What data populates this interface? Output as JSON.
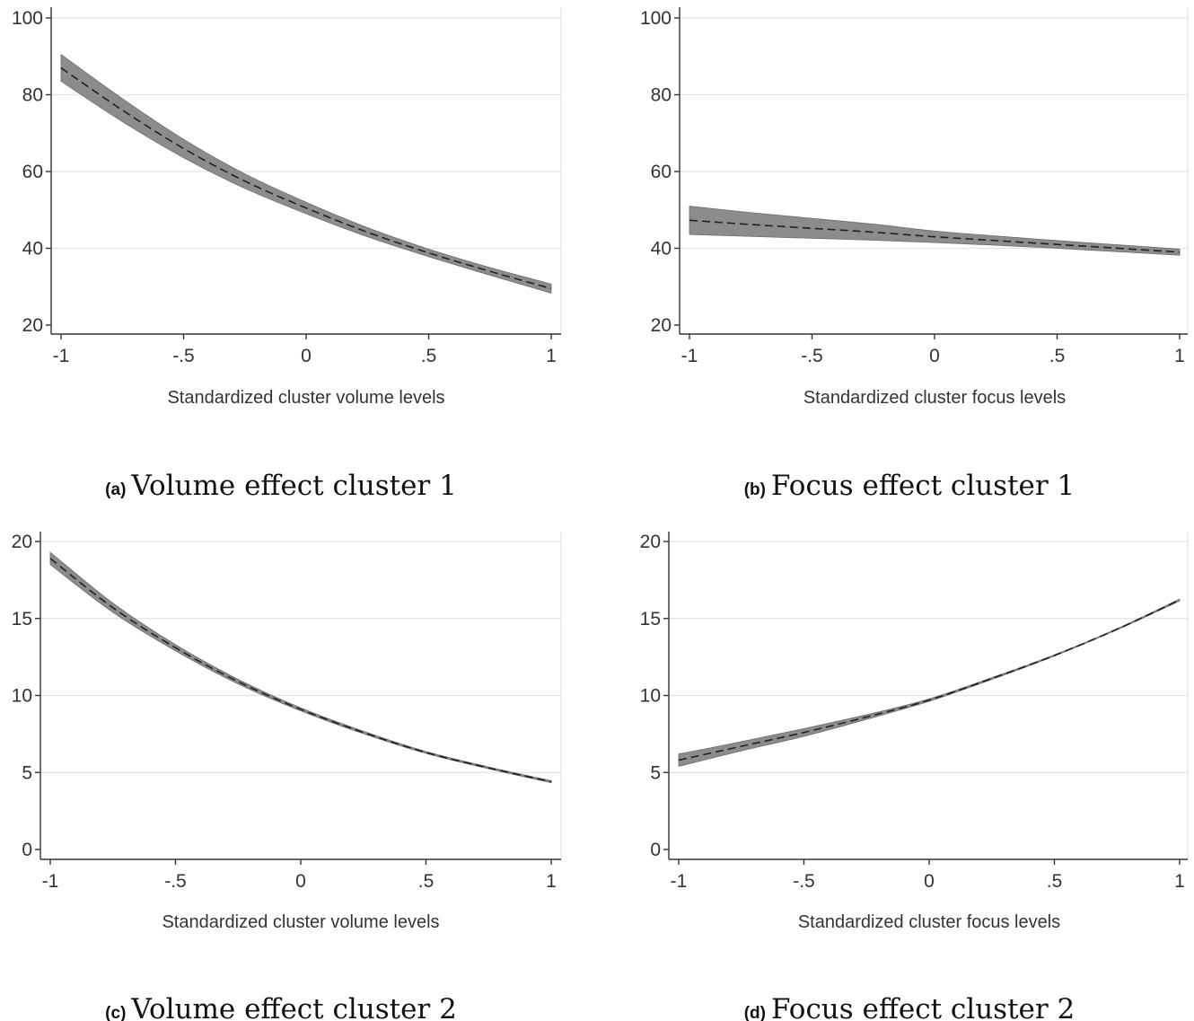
{
  "figure": {
    "panels": [
      {
        "caption_letter": "(a)",
        "caption_text": "Volume effect cluster 1",
        "xlabel": "Standardized cluster volume levels"
      },
      {
        "caption_letter": "(b)",
        "caption_text": "Focus effect cluster 1",
        "xlabel": "Standardized cluster focus levels"
      },
      {
        "caption_letter": "(c)",
        "caption_text": "Volume effect cluster 2",
        "xlabel": "Standardized cluster volume levels"
      },
      {
        "caption_letter": "(d)",
        "caption_text": "Focus effect cluster 2",
        "xlabel": "Standardized cluster focus levels"
      }
    ]
  },
  "chart_data": [
    {
      "type": "line",
      "title": "",
      "xlabel": "Standardized cluster volume levels",
      "ylabel": "",
      "xlim": [
        -1,
        1
      ],
      "ylim": [
        20,
        100
      ],
      "xticks": [
        -1,
        -0.5,
        0,
        0.5,
        1
      ],
      "xtick_labels": [
        "-1",
        "-.5",
        "0",
        ".5",
        "1"
      ],
      "yticks": [
        20,
        40,
        60,
        80,
        100
      ],
      "ytick_labels": [
        "20",
        "40",
        "60",
        "80",
        "100"
      ],
      "grid": true,
      "x": [
        -1,
        -0.75,
        -0.5,
        -0.25,
        0,
        0.25,
        0.5,
        0.75,
        1
      ],
      "series": [
        {
          "style": "dashed line with shaded confidence band",
          "values": [
            87,
            76,
            66,
            57.5,
            50.5,
            44.2,
            38.8,
            34.0,
            29.5
          ],
          "lower": [
            83.5,
            73.0,
            63.6,
            55.6,
            49.0,
            43.0,
            37.8,
            33.0,
            28.3
          ],
          "upper": [
            90.5,
            79.0,
            68.4,
            59.4,
            52.0,
            45.4,
            39.8,
            35.0,
            30.7
          ]
        }
      ],
      "colors": {
        "band": "#8c8c8e",
        "line": "#222222",
        "grid": "#e3e3e3",
        "axis": "#333333"
      }
    },
    {
      "type": "line",
      "title": "",
      "xlabel": "Standardized cluster focus levels",
      "ylabel": "",
      "xlim": [
        -1,
        1
      ],
      "ylim": [
        20,
        100
      ],
      "xticks": [
        -1,
        -0.5,
        0,
        0.5,
        1
      ],
      "xtick_labels": [
        "-1",
        "-.5",
        "0",
        ".5",
        "1"
      ],
      "yticks": [
        20,
        40,
        60,
        80,
        100
      ],
      "ytick_labels": [
        "20",
        "40",
        "60",
        "80",
        "100"
      ],
      "grid": true,
      "x": [
        -1,
        -0.75,
        -0.5,
        -0.25,
        0,
        0.25,
        0.5,
        0.75,
        1
      ],
      "series": [
        {
          "style": "dashed line with shaded confidence band",
          "values": [
            47.3,
            46.2,
            45.2,
            44.2,
            43.0,
            42.0,
            41.0,
            40.0,
            39.0
          ],
          "lower": [
            43.6,
            43.1,
            42.6,
            42.1,
            41.5,
            40.8,
            40.0,
            39.1,
            38.2
          ],
          "upper": [
            51.0,
            49.3,
            47.8,
            46.3,
            44.5,
            43.2,
            42.0,
            40.9,
            39.8
          ]
        }
      ],
      "colors": {
        "band": "#8c8c8e",
        "line": "#222222",
        "grid": "#e3e3e3",
        "axis": "#333333"
      }
    },
    {
      "type": "line",
      "title": "",
      "xlabel": "Standardized cluster volume levels",
      "ylabel": "",
      "xlim": [
        -1,
        1
      ],
      "ylim": [
        0,
        20
      ],
      "xticks": [
        -1,
        -0.5,
        0,
        0.5,
        1
      ],
      "xtick_labels": [
        "-1",
        "-.5",
        "0",
        ".5",
        "1"
      ],
      "yticks": [
        0,
        5,
        10,
        15,
        20
      ],
      "ytick_labels": [
        "0",
        "5",
        "10",
        "15",
        "20"
      ],
      "grid": true,
      "x": [
        -1,
        -0.75,
        -0.5,
        -0.25,
        0,
        0.25,
        0.5,
        0.75,
        1
      ],
      "series": [
        {
          "style": "dashed line with shaded confidence band",
          "values": [
            18.9,
            15.7,
            13.1,
            10.9,
            9.1,
            7.6,
            6.3,
            5.3,
            4.4
          ],
          "lower": [
            18.5,
            15.4,
            12.9,
            10.75,
            9.0,
            7.52,
            6.24,
            5.24,
            4.33
          ],
          "upper": [
            19.3,
            16.0,
            13.3,
            11.05,
            9.2,
            7.68,
            6.36,
            5.36,
            4.47
          ]
        }
      ],
      "colors": {
        "band": "#8c8c8e",
        "line": "#222222",
        "grid": "#e3e3e3",
        "axis": "#333333"
      }
    },
    {
      "type": "line",
      "title": "",
      "xlabel": "Standardized cluster focus levels",
      "ylabel": "",
      "xlim": [
        -1,
        1
      ],
      "ylim": [
        0,
        20
      ],
      "xticks": [
        -1,
        -0.5,
        0,
        0.5,
        1
      ],
      "xtick_labels": [
        "-1",
        "-.5",
        "0",
        ".5",
        "1"
      ],
      "yticks": [
        0,
        5,
        10,
        15,
        20
      ],
      "ytick_labels": [
        "0",
        "5",
        "10",
        "15",
        "20"
      ],
      "grid": true,
      "x": [
        -1,
        -0.75,
        -0.5,
        -0.25,
        0,
        0.25,
        0.5,
        0.75,
        1
      ],
      "series": [
        {
          "style": "dashed line with shaded confidence band",
          "values": [
            5.8,
            6.7,
            7.6,
            8.6,
            9.7,
            11.1,
            12.6,
            14.3,
            16.2
          ],
          "lower": [
            5.4,
            6.4,
            7.35,
            8.45,
            9.62,
            11.04,
            12.56,
            14.26,
            16.14
          ],
          "upper": [
            6.2,
            7.0,
            7.85,
            8.75,
            9.78,
            11.16,
            12.64,
            14.34,
            16.26
          ]
        }
      ],
      "colors": {
        "band": "#8c8c8e",
        "line": "#222222",
        "grid": "#e3e3e3",
        "axis": "#333333"
      }
    }
  ]
}
